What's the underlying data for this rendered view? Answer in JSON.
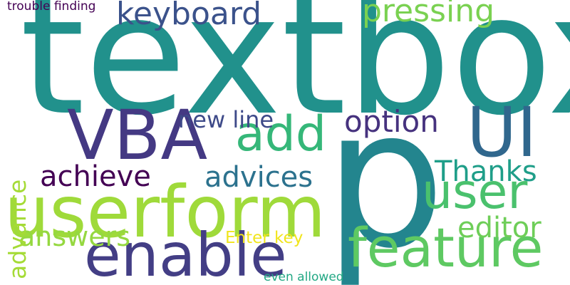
{
  "word_cloud": {
    "background": "#ffffff",
    "words": [
      {
        "text": "textbox",
        "color": "#21918c"
      },
      {
        "text": "p",
        "color": "#23858e"
      },
      {
        "text": "userform",
        "color": "#9fda3a"
      },
      {
        "text": "VBA",
        "color": "#443983"
      },
      {
        "text": "UI",
        "color": "#30678d"
      },
      {
        "text": "enable",
        "color": "#433e85"
      },
      {
        "text": "feature",
        "color": "#5ec962"
      },
      {
        "text": "user",
        "color": "#4ac16d"
      },
      {
        "text": "add",
        "color": "#35b779"
      },
      {
        "text": "keyboard",
        "color": "#3b528b"
      },
      {
        "text": "pressing",
        "color": "#7ad151"
      },
      {
        "text": "option",
        "color": "#46327e"
      },
      {
        "text": "achieve",
        "color": "#440154"
      },
      {
        "text": "advices",
        "color": "#2c728e"
      },
      {
        "text": "Thanks",
        "color": "#1f9e89"
      },
      {
        "text": "answers",
        "color": "#95d840"
      },
      {
        "text": "editor",
        "color": "#6ece58"
      },
      {
        "text": "new line",
        "color": "#3e4a89"
      },
      {
        "text": "advance",
        "color": "#a5db36"
      },
      {
        "text": "Enter key",
        "color": "#f1e51d"
      },
      {
        "text": "trouble finding",
        "color": "#440154"
      },
      {
        "text": "even allowed",
        "color": "#22a884"
      }
    ]
  }
}
